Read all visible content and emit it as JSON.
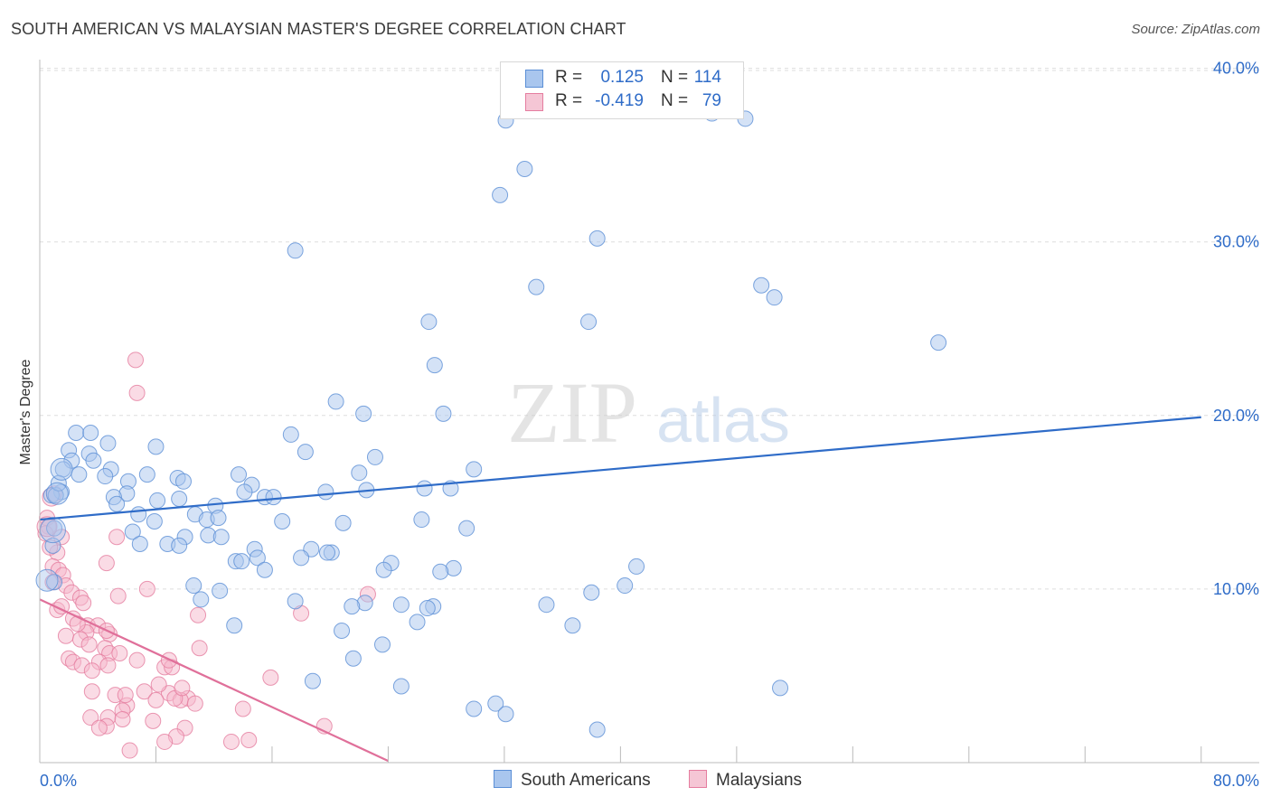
{
  "title": "SOUTH AMERICAN VS MALAYSIAN MASTER'S DEGREE CORRELATION CHART",
  "source": "Source: ZipAtlas.com",
  "watermark": {
    "zip": "ZIP",
    "atlas": "atlas"
  },
  "colors": {
    "blue_fill": "#a9c6ee",
    "blue_stroke": "#5b8fd6",
    "blue_line": "#2f6cc8",
    "pink_fill": "#f5b8cb",
    "pink_stroke": "#e57d9f",
    "pink_line": "#e0709a",
    "value_text": "#2f6cc8",
    "grid": "#dddddd"
  },
  "legend": {
    "rows": [
      {
        "r_label": "R =",
        "r_value": "0.125",
        "n_label": "N =",
        "n_value": "114"
      },
      {
        "r_label": "R =",
        "r_value": "-0.419",
        "n_label": "N =",
        "n_value": "79"
      }
    ]
  },
  "bottom_legend": {
    "blue": "South Americans",
    "pink": "Malaysians"
  },
  "chart_data": {
    "type": "scatter",
    "xlabel": "",
    "ylabel": "Master's Degree",
    "xlim": [
      0,
      84
    ],
    "ylim": [
      0,
      40.5
    ],
    "x_tick_labels": [
      "0.0%",
      "80.0%"
    ],
    "y_ticks": [
      10,
      20,
      30,
      40
    ],
    "y_tick_labels": [
      "10.0%",
      "20.0%",
      "30.0%",
      "40.0%"
    ],
    "grid": true,
    "series": [
      {
        "name": "South Americans",
        "color": "blue",
        "trend": {
          "x": [
            0,
            80
          ],
          "y": [
            14.0,
            19.9
          ]
        },
        "points": [
          [
            32.1,
            37
          ],
          [
            46.3,
            37.4
          ],
          [
            48.6,
            37.1
          ],
          [
            33.4,
            34.2
          ],
          [
            31.7,
            32.7
          ],
          [
            38.4,
            30.2
          ],
          [
            17.6,
            29.5
          ],
          [
            34.2,
            27.4
          ],
          [
            50.6,
            26.8
          ],
          [
            49.7,
            27.5
          ],
          [
            26.8,
            25.4
          ],
          [
            37.8,
            25.4
          ],
          [
            61.9,
            24.2
          ],
          [
            27.2,
            22.9
          ],
          [
            20.4,
            20.8
          ],
          [
            22.3,
            20.1
          ],
          [
            27.8,
            20.1
          ],
          [
            2.5,
            19.0
          ],
          [
            3.5,
            19.0
          ],
          [
            17.3,
            18.9
          ],
          [
            4.7,
            18.4
          ],
          [
            8.0,
            18.2
          ],
          [
            2.0,
            18.0
          ],
          [
            3.4,
            17.8
          ],
          [
            18.3,
            17.9
          ],
          [
            23.1,
            17.6
          ],
          [
            2.2,
            17.4
          ],
          [
            3.7,
            17.4
          ],
          [
            1.6,
            16.9
          ],
          [
            4.9,
            16.9
          ],
          [
            7.4,
            16.6
          ],
          [
            13.7,
            16.6
          ],
          [
            22.0,
            16.7
          ],
          [
            29.9,
            16.9
          ],
          [
            2.7,
            16.6
          ],
          [
            4.5,
            16.5
          ],
          [
            9.5,
            16.4
          ],
          [
            6.1,
            16.2
          ],
          [
            9.9,
            16.2
          ],
          [
            14.6,
            16.0
          ],
          [
            1.5,
            15.6
          ],
          [
            14.1,
            15.6
          ],
          [
            22.5,
            15.7
          ],
          [
            26.5,
            15.8
          ],
          [
            28.3,
            15.8
          ],
          [
            6.0,
            15.5
          ],
          [
            5.1,
            15.3
          ],
          [
            9.6,
            15.2
          ],
          [
            8.1,
            15.1
          ],
          [
            15.5,
            15.3
          ],
          [
            19.7,
            15.6
          ],
          [
            0.8,
            15.4
          ],
          [
            16.1,
            15.3
          ],
          [
            5.3,
            14.9
          ],
          [
            12.1,
            14.8
          ],
          [
            6.8,
            14.3
          ],
          [
            10.7,
            14.3
          ],
          [
            11.5,
            14.0
          ],
          [
            12.3,
            14.1
          ],
          [
            7.9,
            13.9
          ],
          [
            16.7,
            13.9
          ],
          [
            20.9,
            13.8
          ],
          [
            26.3,
            14.0
          ],
          [
            29.4,
            13.5
          ],
          [
            1.0,
            13.5
          ],
          [
            6.4,
            13.3
          ],
          [
            11.6,
            13.1
          ],
          [
            12.5,
            13.0
          ],
          [
            10.0,
            13.0
          ],
          [
            6.9,
            12.6
          ],
          [
            8.8,
            12.6
          ],
          [
            9.6,
            12.5
          ],
          [
            0.9,
            12.5
          ],
          [
            14.8,
            12.3
          ],
          [
            18.7,
            12.3
          ],
          [
            20.1,
            12.1
          ],
          [
            19.8,
            12.1
          ],
          [
            15.0,
            11.8
          ],
          [
            18.0,
            11.8
          ],
          [
            13.5,
            11.6
          ],
          [
            13.9,
            11.6
          ],
          [
            24.2,
            11.5
          ],
          [
            23.7,
            11.1
          ],
          [
            15.5,
            11.1
          ],
          [
            28.5,
            11.2
          ],
          [
            41.1,
            11.3
          ],
          [
            27.6,
            11.0
          ],
          [
            1.0,
            10.4
          ],
          [
            10.6,
            10.2
          ],
          [
            40.3,
            10.2
          ],
          [
            12.4,
            9.9
          ],
          [
            38.0,
            9.8
          ],
          [
            11.1,
            9.4
          ],
          [
            17.6,
            9.3
          ],
          [
            22.4,
            9.2
          ],
          [
            21.5,
            9.0
          ],
          [
            24.9,
            9.1
          ],
          [
            27.1,
            9.0
          ],
          [
            34.9,
            9.1
          ],
          [
            26.7,
            8.9
          ],
          [
            13.4,
            7.9
          ],
          [
            26.0,
            8.1
          ],
          [
            36.7,
            7.9
          ],
          [
            20.8,
            7.6
          ],
          [
            23.6,
            6.8
          ],
          [
            21.6,
            6.0
          ],
          [
            18.8,
            4.7
          ],
          [
            24.9,
            4.4
          ],
          [
            51.0,
            4.3
          ],
          [
            31.4,
            3.4
          ],
          [
            29.9,
            3.1
          ],
          [
            32.1,
            2.8
          ],
          [
            38.4,
            1.9
          ],
          [
            1.1,
            15.4
          ],
          [
            1.3,
            16.1
          ]
        ]
      },
      {
        "name": "Malaysians",
        "color": "pink",
        "trend": {
          "x": [
            0,
            24
          ],
          "y": [
            9.4,
            0.1
          ]
        },
        "points": [
          [
            6.6,
            23.2
          ],
          [
            6.7,
            21.3
          ],
          [
            1.0,
            15.5
          ],
          [
            0.5,
            14.1
          ],
          [
            0.6,
            13.6
          ],
          [
            0.4,
            13.2
          ],
          [
            1.5,
            13.0
          ],
          [
            5.3,
            13.0
          ],
          [
            1.2,
            12.1
          ],
          [
            4.6,
            11.5
          ],
          [
            0.9,
            11.3
          ],
          [
            1.3,
            11.1
          ],
          [
            1.6,
            10.8
          ],
          [
            1.8,
            10.2
          ],
          [
            7.4,
            10.0
          ],
          [
            2.2,
            9.8
          ],
          [
            5.4,
            9.6
          ],
          [
            2.8,
            9.5
          ],
          [
            3.0,
            9.2
          ],
          [
            1.2,
            8.8
          ],
          [
            18.0,
            8.6
          ],
          [
            10.9,
            8.5
          ],
          [
            2.3,
            8.3
          ],
          [
            3.3,
            7.9
          ],
          [
            0.7,
            12.4
          ],
          [
            4.0,
            7.9
          ],
          [
            3.2,
            7.5
          ],
          [
            4.8,
            7.4
          ],
          [
            1.8,
            7.3
          ],
          [
            2.8,
            7.1
          ],
          [
            22.6,
            9.7
          ],
          [
            0.9,
            10.4
          ],
          [
            3.4,
            6.8
          ],
          [
            4.5,
            6.6
          ],
          [
            4.8,
            6.3
          ],
          [
            11.0,
            6.6
          ],
          [
            2.0,
            6.0
          ],
          [
            4.1,
            5.8
          ],
          [
            2.3,
            5.8
          ],
          [
            2.9,
            5.6
          ],
          [
            4.7,
            5.6
          ],
          [
            8.6,
            5.5
          ],
          [
            9.1,
            5.5
          ],
          [
            8.9,
            5.9
          ],
          [
            3.6,
            5.3
          ],
          [
            15.9,
            4.9
          ],
          [
            3.6,
            4.1
          ],
          [
            7.2,
            4.1
          ],
          [
            8.9,
            4.0
          ],
          [
            5.2,
            3.9
          ],
          [
            10.2,
            3.7
          ],
          [
            9.7,
            3.6
          ],
          [
            10.7,
            3.4
          ],
          [
            6.0,
            3.3
          ],
          [
            5.7,
            3.0
          ],
          [
            14.0,
            3.1
          ],
          [
            9.3,
            3.7
          ],
          [
            8.0,
            3.6
          ],
          [
            3.5,
            2.6
          ],
          [
            4.7,
            2.6
          ],
          [
            5.7,
            2.5
          ],
          [
            7.8,
            2.4
          ],
          [
            4.6,
            2.1
          ],
          [
            4.1,
            2.0
          ],
          [
            10.0,
            2.0
          ],
          [
            9.4,
            1.5
          ],
          [
            19.6,
            2.1
          ],
          [
            8.6,
            1.2
          ],
          [
            13.2,
            1.2
          ],
          [
            14.4,
            1.3
          ],
          [
            6.2,
            0.7
          ],
          [
            2.6,
            8.0
          ],
          [
            1.5,
            9.0
          ],
          [
            6.7,
            5.9
          ],
          [
            4.6,
            7.6
          ],
          [
            5.5,
            6.3
          ],
          [
            9.8,
            4.3
          ],
          [
            8.2,
            4.5
          ],
          [
            5.9,
            3.9
          ]
        ]
      }
    ]
  }
}
